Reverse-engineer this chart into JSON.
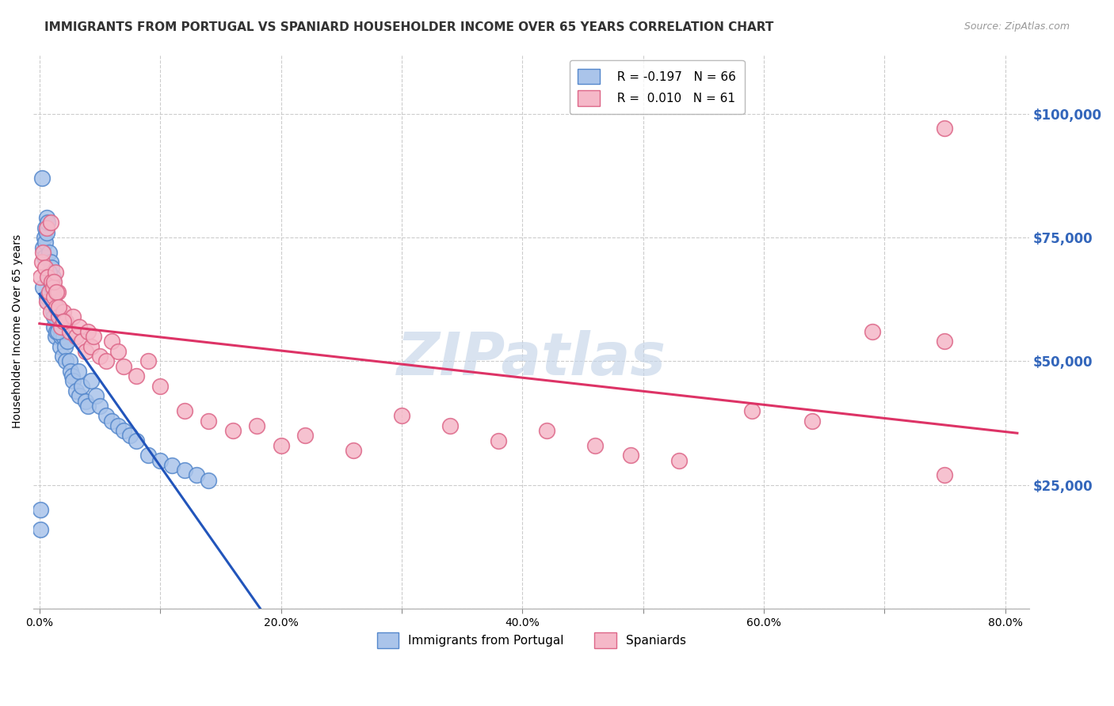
{
  "title": "IMMIGRANTS FROM PORTUGAL VS SPANIARD HOUSEHOLDER INCOME OVER 65 YEARS CORRELATION CHART",
  "source_text": "Source: ZipAtlas.com",
  "ylabel": "Householder Income Over 65 years",
  "xlim_min": -0.005,
  "xlim_max": 0.82,
  "ylim_min": 0,
  "ylim_max": 112000,
  "xtick_values": [
    0.0,
    0.1,
    0.2,
    0.3,
    0.4,
    0.5,
    0.6,
    0.7,
    0.8
  ],
  "xtick_labels": [
    "0.0%",
    "",
    "20.0%",
    "",
    "40.0%",
    "",
    "60.0%",
    "",
    "80.0%"
  ],
  "ytick_values": [
    0,
    25000,
    50000,
    75000,
    100000
  ],
  "ytick_labels": [
    "",
    "$25,000",
    "$50,000",
    "$75,000",
    "$100,000"
  ],
  "series1_label": "Immigrants from Portugal",
  "series2_label": "Spaniards",
  "legend_r1": "R = -0.197",
  "legend_n1": "N = 66",
  "legend_r2": "R =  0.010",
  "legend_n2": "N = 61",
  "series1_fill": "#aac4ea",
  "series1_edge": "#5588cc",
  "series2_fill": "#f5b8c8",
  "series2_edge": "#dd6688",
  "trend1_solid_color": "#2255bb",
  "trend1_dash_color": "#88aadd",
  "trend2_color": "#dd3366",
  "watermark_color": "#c5d5e8",
  "title_color": "#333333",
  "source_color": "#999999",
  "ytick_color": "#3366bb",
  "grid_color": "#cccccc",
  "title_fontsize": 11,
  "axis_label_fontsize": 10,
  "tick_fontsize": 10,
  "legend_fontsize": 11,
  "portugal_x": [
    0.001,
    0.001,
    0.002,
    0.003,
    0.004,
    0.004,
    0.005,
    0.005,
    0.006,
    0.006,
    0.007,
    0.007,
    0.008,
    0.008,
    0.009,
    0.009,
    0.01,
    0.01,
    0.011,
    0.011,
    0.012,
    0.012,
    0.013,
    0.013,
    0.014,
    0.014,
    0.015,
    0.016,
    0.017,
    0.018,
    0.019,
    0.02,
    0.021,
    0.022,
    0.023,
    0.025,
    0.026,
    0.027,
    0.028,
    0.03,
    0.032,
    0.033,
    0.035,
    0.038,
    0.04,
    0.043,
    0.047,
    0.05,
    0.055,
    0.06,
    0.065,
    0.07,
    0.075,
    0.08,
    0.09,
    0.1,
    0.11,
    0.12,
    0.13,
    0.14,
    0.003,
    0.006,
    0.008,
    0.01,
    0.012,
    0.015
  ],
  "portugal_y": [
    16000,
    20000,
    87000,
    73000,
    71000,
    75000,
    77000,
    74000,
    76000,
    79000,
    78000,
    62000,
    67000,
    72000,
    70000,
    66000,
    69000,
    64000,
    67000,
    60000,
    62000,
    57000,
    59000,
    55000,
    60000,
    56000,
    58000,
    57000,
    53000,
    55000,
    51000,
    55000,
    53000,
    50000,
    54000,
    50000,
    48000,
    47000,
    46000,
    44000,
    48000,
    43000,
    45000,
    42000,
    41000,
    46000,
    43000,
    41000,
    39000,
    38000,
    37000,
    36000,
    35000,
    34000,
    31000,
    30000,
    29000,
    28000,
    27000,
    26000,
    65000,
    63000,
    68000,
    65000,
    59000,
    56000
  ],
  "spaniard_x": [
    0.001,
    0.002,
    0.003,
    0.005,
    0.006,
    0.007,
    0.008,
    0.009,
    0.01,
    0.011,
    0.012,
    0.013,
    0.014,
    0.015,
    0.016,
    0.018,
    0.02,
    0.022,
    0.025,
    0.028,
    0.03,
    0.033,
    0.035,
    0.038,
    0.04,
    0.043,
    0.045,
    0.05,
    0.055,
    0.06,
    0.065,
    0.07,
    0.08,
    0.09,
    0.1,
    0.12,
    0.14,
    0.16,
    0.18,
    0.2,
    0.22,
    0.26,
    0.3,
    0.34,
    0.38,
    0.42,
    0.46,
    0.49,
    0.53,
    0.59,
    0.64,
    0.69,
    0.75,
    0.006,
    0.009,
    0.012,
    0.014,
    0.016,
    0.02,
    0.75,
    0.75
  ],
  "spaniard_y": [
    67000,
    70000,
    72000,
    69000,
    62000,
    67000,
    64000,
    60000,
    66000,
    65000,
    63000,
    68000,
    61000,
    64000,
    59000,
    57000,
    60000,
    58000,
    56000,
    59000,
    55000,
    57000,
    54000,
    52000,
    56000,
    53000,
    55000,
    51000,
    50000,
    54000,
    52000,
    49000,
    47000,
    50000,
    45000,
    40000,
    38000,
    36000,
    37000,
    33000,
    35000,
    32000,
    39000,
    37000,
    34000,
    36000,
    33000,
    31000,
    30000,
    40000,
    38000,
    56000,
    97000,
    77000,
    78000,
    66000,
    64000,
    61000,
    58000,
    54000,
    27000
  ],
  "trend1_x_solid_end": 0.44,
  "trend1_x_dash_end": 0.81,
  "trend2_x_end": 0.81
}
